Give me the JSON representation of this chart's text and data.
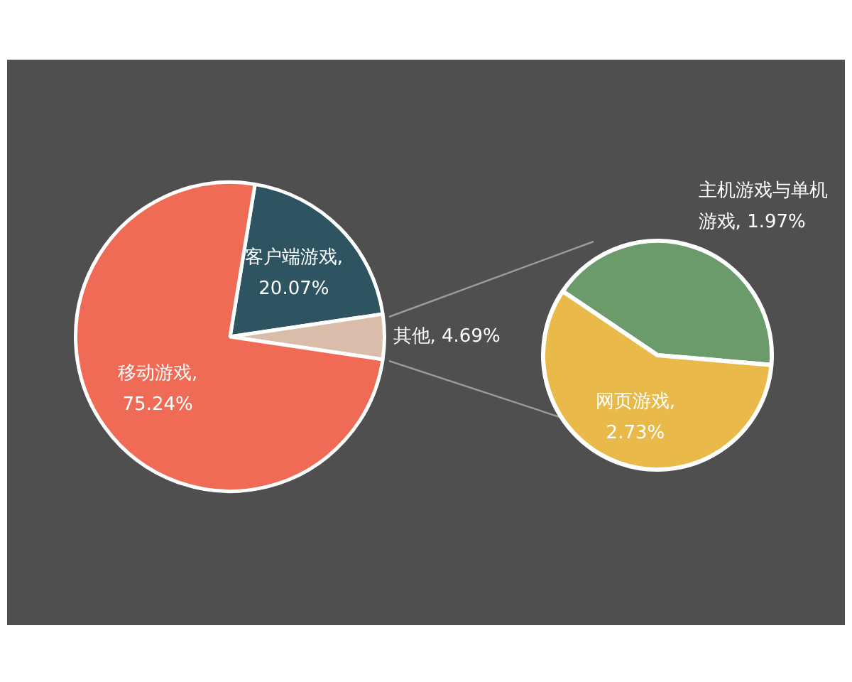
{
  "chart_data": [
    {
      "type": "pie",
      "categories": [
        "客户端游戏",
        "其他",
        "移动游戏"
      ],
      "values": [
        20.07,
        4.69,
        75.24
      ],
      "colors": [
        "#2f5461",
        "#d9bcaa",
        "#ef6b55"
      ],
      "value_labels": [
        ", 20.07%",
        ", 4.69%",
        ", 75.24%"
      ],
      "legend": false
    },
    {
      "type": "pie",
      "categories": [
        "主机游戏与单机游戏",
        "网页游戏"
      ],
      "values": [
        1.97,
        2.73
      ],
      "colors": [
        "#6b9a6b",
        "#e9b949"
      ],
      "value_labels": [
        ", 1.97%",
        ", 2.73%"
      ],
      "legend": false
    }
  ]
}
